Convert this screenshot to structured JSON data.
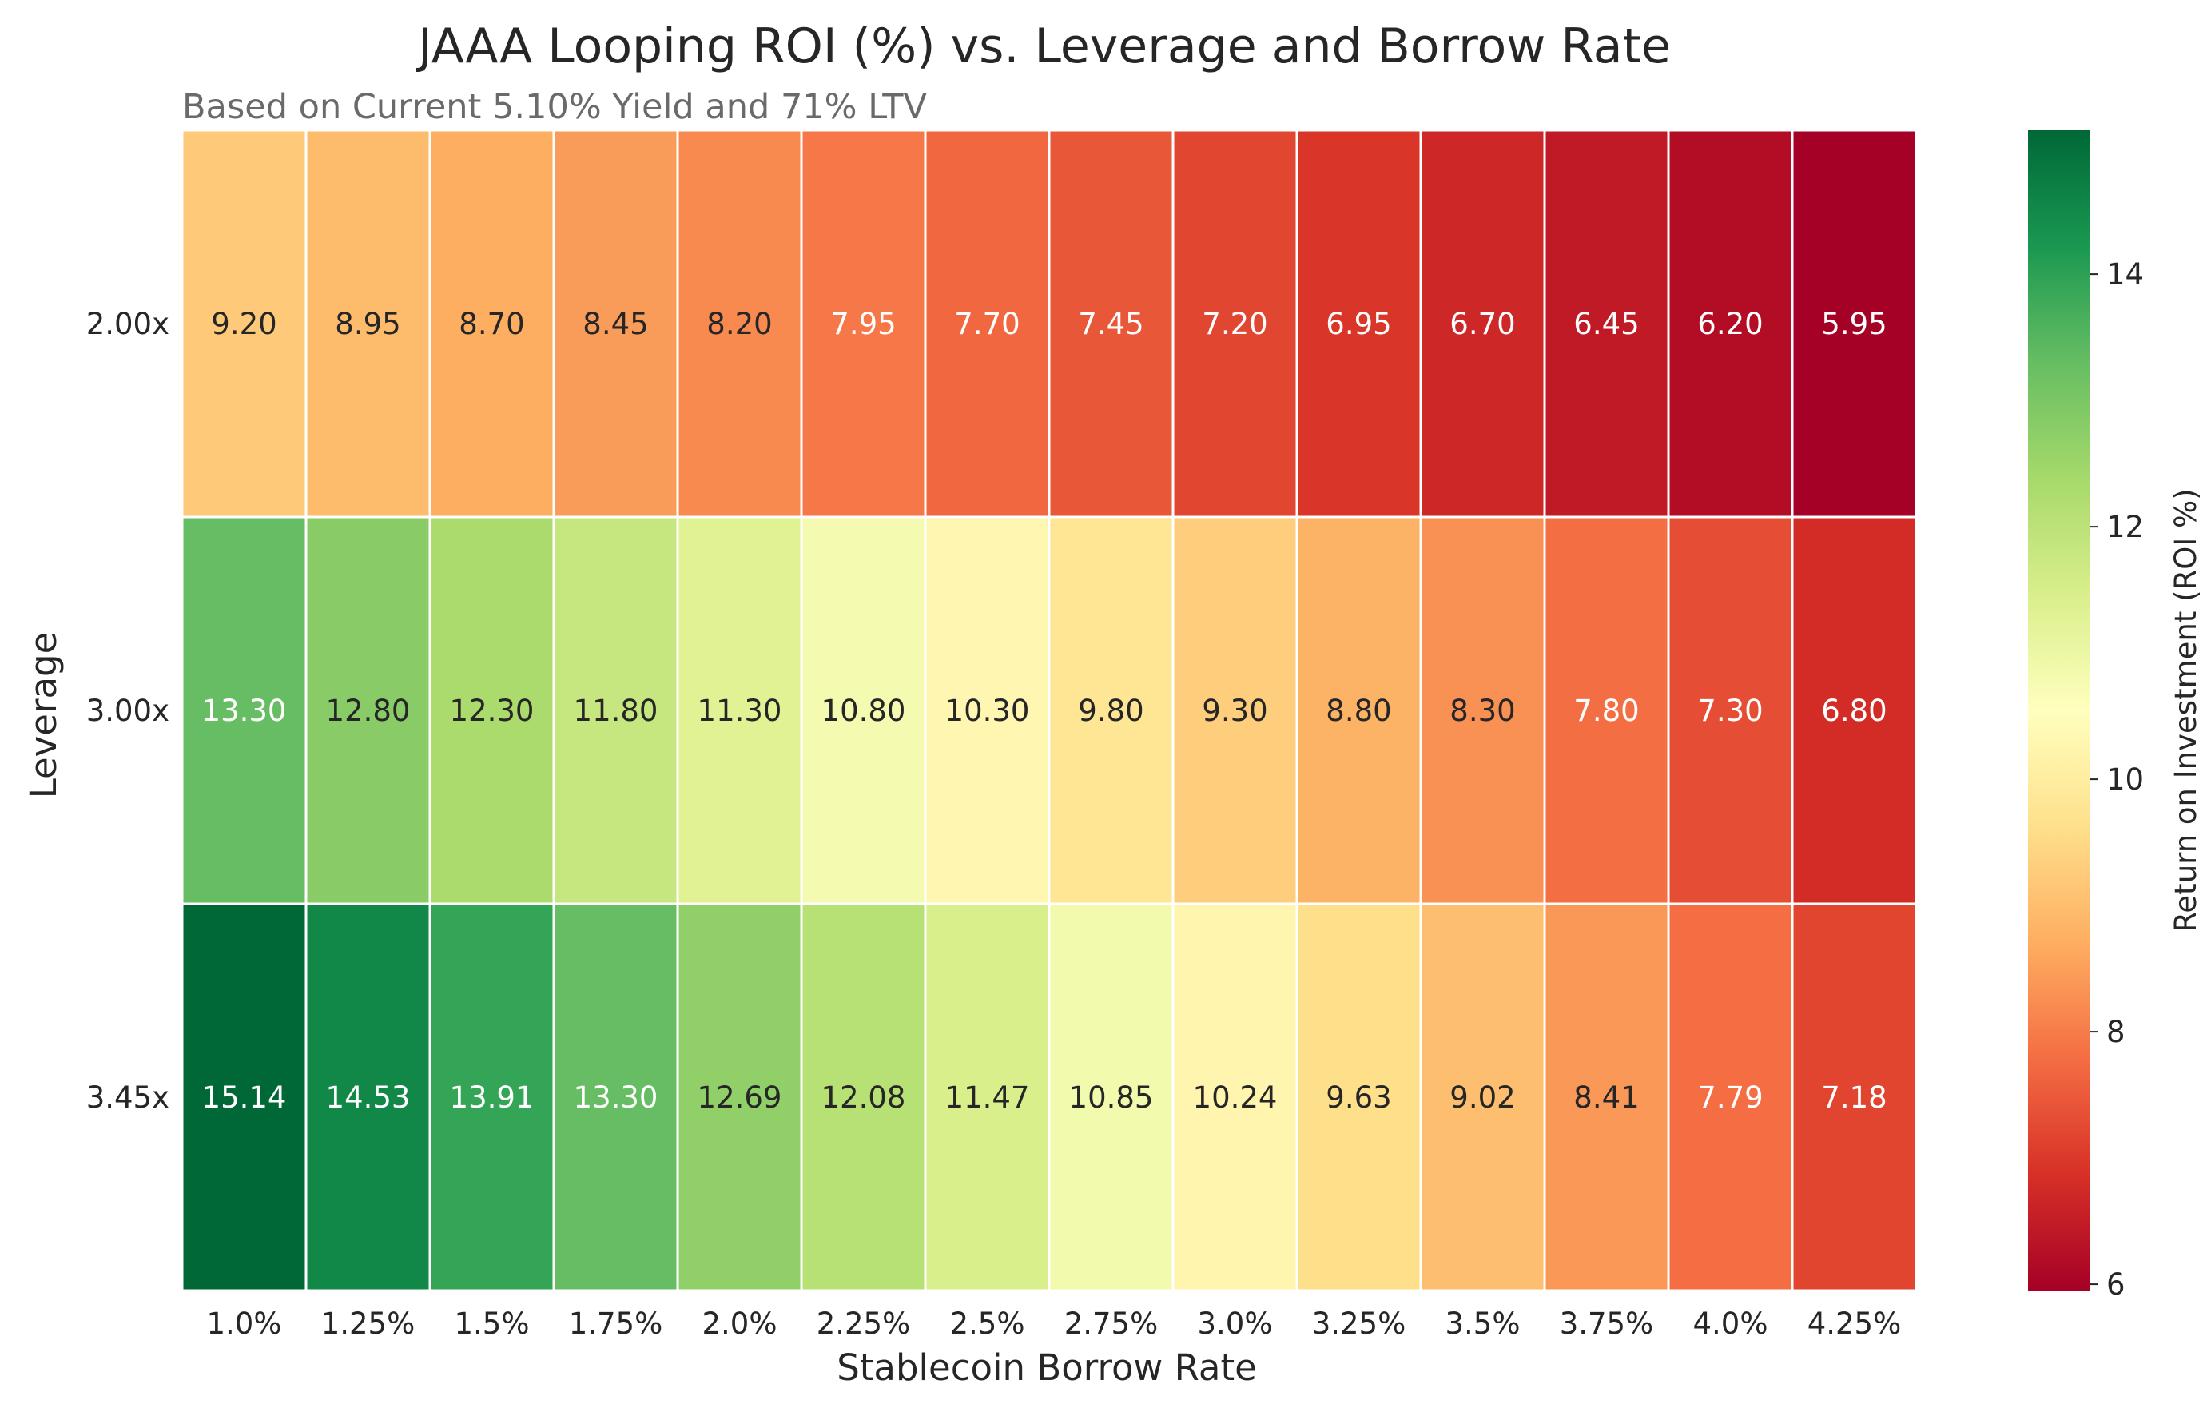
{
  "chart_data": {
    "type": "heatmap",
    "title": "JAAA Looping ROI (%) vs. Leverage and Borrow Rate",
    "subtitle": "Based on Current 5.10% Yield and 71% LTV",
    "xlabel": "Stablecoin Borrow Rate",
    "ylabel": "Leverage",
    "x_categories": [
      "1.0%",
      "1.25%",
      "1.5%",
      "1.75%",
      "2.0%",
      "2.25%",
      "2.5%",
      "2.75%",
      "3.0%",
      "3.25%",
      "3.5%",
      "3.75%",
      "4.0%",
      "4.25%"
    ],
    "y_categories": [
      "2.00x",
      "3.00x",
      "3.45x"
    ],
    "values": [
      [
        9.2,
        8.95,
        8.7,
        8.45,
        8.2,
        7.95,
        7.7,
        7.45,
        7.2,
        6.95,
        6.7,
        6.45,
        6.2,
        5.95
      ],
      [
        13.3,
        12.8,
        12.3,
        11.8,
        11.3,
        10.8,
        10.3,
        9.8,
        9.3,
        8.8,
        8.3,
        7.8,
        7.3,
        6.8
      ],
      [
        15.14,
        14.53,
        13.91,
        13.3,
        12.69,
        12.08,
        11.47,
        10.85,
        10.24,
        9.63,
        9.02,
        8.41,
        7.79,
        7.18
      ]
    ],
    "colormap": "RdYlGn",
    "vmin": 5.95,
    "vmax": 15.14,
    "colorbar": {
      "label": "Return on Investment (ROI %)",
      "ticks": [
        6,
        8,
        10,
        12,
        14
      ]
    }
  }
}
